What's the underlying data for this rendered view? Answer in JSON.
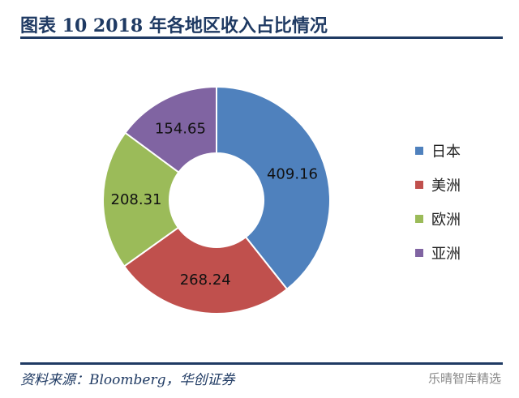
{
  "title": "图表 10   2018 年各地区收入占比情况",
  "source": "资料来源：Bloomberg，华创证券",
  "watermark": "乐晴智库精选",
  "chart_data": {
    "type": "pie",
    "donut": true,
    "categories": [
      "日本",
      "美洲",
      "欧洲",
      "亚洲"
    ],
    "values": [
      409.16,
      268.24,
      208.31,
      154.65
    ],
    "labels": [
      "409.16",
      "268.24",
      "208.31",
      "154.65"
    ],
    "colors": [
      "#4f81bd",
      "#c0504d",
      "#9bbb59",
      "#8064a2"
    ],
    "legend_position": "right",
    "start": "top",
    "direction": "clockwise"
  }
}
